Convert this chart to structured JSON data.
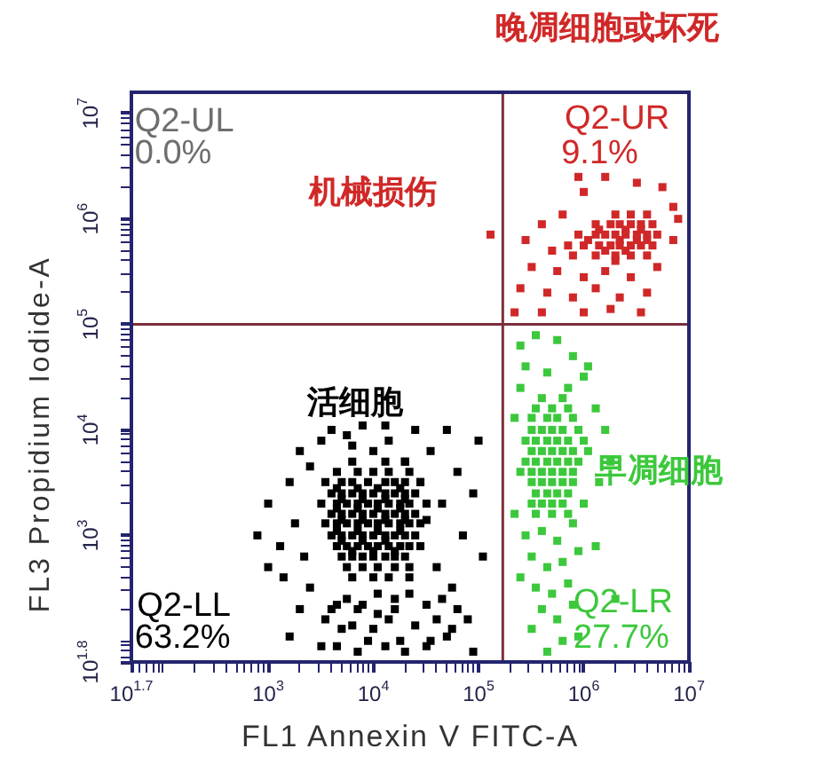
{
  "chart_data": {
    "type": "scatter",
    "xlabel": "FL1 Annexin V FITC-A",
    "ylabel": "FL3 Propidium Iodide-A",
    "log": "xy",
    "grid": false,
    "legend": false,
    "marker": "square",
    "xlim": [
      50.1,
      10000000
    ],
    "ylim": [
      63.1,
      15850000
    ],
    "xticks": [
      {
        "value": 50.1,
        "label": "10$^{1.7}$"
      },
      {
        "value": 60,
        "label": null
      },
      {
        "value": 70,
        "label": null
      },
      {
        "value": 80,
        "label": null
      },
      {
        "value": 90,
        "label": null
      },
      {
        "value": 100,
        "label": null
      },
      {
        "value": 200,
        "label": null
      },
      {
        "value": 300,
        "label": null
      },
      {
        "value": 400,
        "label": null
      },
      {
        "value": 500,
        "label": null
      },
      {
        "value": 600,
        "label": null
      },
      {
        "value": 700,
        "label": null
      },
      {
        "value": 800,
        "label": null
      },
      {
        "value": 900,
        "label": null
      },
      {
        "value": 1000,
        "label": "10$^{3}$"
      },
      {
        "value": 2000,
        "label": null
      },
      {
        "value": 3000,
        "label": null
      },
      {
        "value": 4000,
        "label": null
      },
      {
        "value": 5000,
        "label": null
      },
      {
        "value": 6000,
        "label": null
      },
      {
        "value": 7000,
        "label": null
      },
      {
        "value": 8000,
        "label": null
      },
      {
        "value": 9000,
        "label": null
      },
      {
        "value": 10000,
        "label": "10$^{4}$"
      },
      {
        "value": 20000,
        "label": null
      },
      {
        "value": 30000,
        "label": null
      },
      {
        "value": 40000,
        "label": null
      },
      {
        "value": 50000,
        "label": null
      },
      {
        "value": 60000,
        "label": null
      },
      {
        "value": 70000,
        "label": null
      },
      {
        "value": 80000,
        "label": null
      },
      {
        "value": 90000,
        "label": null
      },
      {
        "value": 100000,
        "label": "10$^{5}$"
      },
      {
        "value": 200000,
        "label": null
      },
      {
        "value": 300000,
        "label": null
      },
      {
        "value": 400000,
        "label": null
      },
      {
        "value": 500000,
        "label": null
      },
      {
        "value": 600000,
        "label": null
      },
      {
        "value": 700000,
        "label": null
      },
      {
        "value": 800000,
        "label": null
      },
      {
        "value": 900000,
        "label": null
      },
      {
        "value": 1000000,
        "label": "10$^{6}$"
      },
      {
        "value": 2000000,
        "label": null
      },
      {
        "value": 3000000,
        "label": null
      },
      {
        "value": 4000000,
        "label": null
      },
      {
        "value": 5000000,
        "label": null
      },
      {
        "value": 6000000,
        "label": null
      },
      {
        "value": 7000000,
        "label": null
      },
      {
        "value": 8000000,
        "label": null
      },
      {
        "value": 9000000,
        "label": null
      },
      {
        "value": 10000000,
        "label": "10$^{7}$"
      }
    ],
    "yticks": [
      {
        "value": 63.1,
        "label": "10$^{1.8}$"
      },
      {
        "value": 70,
        "label": null
      },
      {
        "value": 80,
        "label": null
      },
      {
        "value": 90,
        "label": null
      },
      {
        "value": 100,
        "label": null
      },
      {
        "value": 200,
        "label": null
      },
      {
        "value": 300,
        "label": null
      },
      {
        "value": 400,
        "label": null
      },
      {
        "value": 500,
        "label": null
      },
      {
        "value": 600,
        "label": null
      },
      {
        "value": 700,
        "label": null
      },
      {
        "value": 800,
        "label": null
      },
      {
        "value": 900,
        "label": null
      },
      {
        "value": 1000,
        "label": "10$^{3}$"
      },
      {
        "value": 2000,
        "label": null
      },
      {
        "value": 3000,
        "label": null
      },
      {
        "value": 4000,
        "label": null
      },
      {
        "value": 5000,
        "label": null
      },
      {
        "value": 6000,
        "label": null
      },
      {
        "value": 7000,
        "label": null
      },
      {
        "value": 8000,
        "label": null
      },
      {
        "value": 9000,
        "label": null
      },
      {
        "value": 10000,
        "label": "10$^{4}$"
      },
      {
        "value": 20000,
        "label": null
      },
      {
        "value": 30000,
        "label": null
      },
      {
        "value": 40000,
        "label": null
      },
      {
        "value": 50000,
        "label": null
      },
      {
        "value": 60000,
        "label": null
      },
      {
        "value": 70000,
        "label": null
      },
      {
        "value": 80000,
        "label": null
      },
      {
        "value": 90000,
        "label": null
      },
      {
        "value": 100000,
        "label": "10$^{5}$"
      },
      {
        "value": 200000,
        "label": null
      },
      {
        "value": 300000,
        "label": null
      },
      {
        "value": 400000,
        "label": null
      },
      {
        "value": 500000,
        "label": null
      },
      {
        "value": 600000,
        "label": null
      },
      {
        "value": 700000,
        "label": null
      },
      {
        "value": 800000,
        "label": null
      },
      {
        "value": 900000,
        "label": null
      },
      {
        "value": 1000000,
        "label": "10$^{6}$"
      },
      {
        "value": 2000000,
        "label": null
      },
      {
        "value": 3000000,
        "label": null
      },
      {
        "value": 4000000,
        "label": null
      },
      {
        "value": 5000000,
        "label": null
      },
      {
        "value": 6000000,
        "label": null
      },
      {
        "value": 7000000,
        "label": null
      },
      {
        "value": 8000000,
        "label": null
      },
      {
        "value": 9000000,
        "label": null
      },
      {
        "value": 10000000,
        "label": "10$^{7}$"
      }
    ],
    "ref_lines": [
      {
        "axis": "x",
        "value": 170000,
        "color": "#7d2e3a"
      },
      {
        "axis": "y",
        "value": 100000,
        "color": "#7d2e3a"
      }
    ],
    "series": [
      {
        "color": "#000000",
        "x": [
          6300,
          13000,
          20000,
          4500,
          7100,
          10000,
          14000,
          22000,
          3500,
          5000,
          6300,
          8900,
          13000,
          16000,
          20000,
          28000,
          4500,
          7100,
          11000,
          18000,
          4000,
          5000,
          6300,
          7900,
          10000,
          13000,
          16000,
          20000,
          25000,
          5000,
          7900,
          13000,
          20000,
          3200,
          4500,
          5600,
          7100,
          8900,
          11000,
          14000,
          18000,
          22000,
          32000,
          4500,
          7100,
          11000,
          18000,
          4000,
          5000,
          6300,
          7900,
          10000,
          13000,
          16000,
          20000,
          25000,
          5000,
          7900,
          13000,
          20000,
          3500,
          4500,
          5600,
          7100,
          8900,
          11000,
          14000,
          18000,
          22000,
          28000,
          4500,
          7100,
          11000,
          18000,
          4000,
          5000,
          6300,
          7900,
          10000,
          13000,
          16000,
          20000,
          25000,
          5000,
          7900,
          13000,
          4500,
          5600,
          7100,
          8900,
          11000,
          14000,
          18000,
          22000,
          6300,
          10000,
          16000,
          5000,
          6300,
          7900,
          10000,
          13000,
          16000,
          20000,
          5600,
          7900,
          11000,
          16000,
          22000,
          6300,
          10000,
          14000,
          1000,
          1300,
          1600,
          1400,
          1800,
          2000,
          2000,
          2200,
          2500,
          2500,
          3200,
          3500,
          4000,
          4500,
          6300,
          7100,
          7900,
          10000,
          11000,
          14000,
          16000,
          20000,
          22000,
          28000,
          28000,
          32000,
          35000,
          40000,
          45000,
          50000,
          56000,
          63000,
          71000,
          79000,
          89000,
          100000,
          110000,
          25000,
          5000,
          8900,
          18000,
          32000,
          50000,
          89000,
          3200,
          1600,
          13000,
          5600,
          1000,
          790,
          4000,
          5600,
          7900,
          11000,
          16000,
          22000,
          32000,
          45000,
          6300,
          10000,
          14000,
          25000,
          40000,
          4500,
          7100,
          13000,
          20000,
          35000,
          63000,
          56000
        ],
        "values": [
          5000,
          5000,
          5000,
          4000,
          4000,
          4000,
          4000,
          4000,
          3200,
          3200,
          3200,
          3200,
          3200,
          3200,
          3200,
          3200,
          2800,
          2800,
          2800,
          2800,
          2500,
          2500,
          2500,
          2500,
          2500,
          2500,
          2500,
          2500,
          2500,
          2200,
          2200,
          2200,
          2200,
          2000,
          2000,
          2000,
          2000,
          2000,
          2000,
          2000,
          2000,
          2000,
          2000,
          1800,
          1800,
          1800,
          1800,
          1600,
          1600,
          1600,
          1600,
          1600,
          1600,
          1600,
          1600,
          1600,
          1400,
          1400,
          1400,
          1400,
          1300,
          1300,
          1300,
          1300,
          1300,
          1300,
          1300,
          1300,
          1300,
          1300,
          1100,
          1100,
          1100,
          1100,
          1000,
          1000,
          1000,
          1000,
          1000,
          1000,
          1000,
          1000,
          1000,
          890,
          890,
          890,
          790,
          790,
          790,
          790,
          790,
          790,
          790,
          790,
          710,
          710,
          710,
          630,
          630,
          630,
          630,
          630,
          630,
          630,
          500,
          500,
          500,
          500,
          500,
          400,
          400,
          400,
          2000,
          790,
          3200,
          400,
          1300,
          6300,
          200,
          630,
          4500,
          320,
          7900,
          160,
          10000,
          220,
          7100,
          200,
          11000,
          6300,
          180,
          7900,
          250,
          5000,
          400,
          3200,
          790,
          1400,
          6300,
          500,
          2000,
          10000,
          320,
          4000,
          1000,
          160,
          2500,
          7900,
          630,
          10000,
          130,
          100,
          100,
          89,
          110,
          79,
          89,
          110,
          11000,
          8900,
          500,
          1000,
          200,
          250,
          220,
          280,
          200,
          280,
          220,
          250,
          140,
          130,
          160,
          140,
          160,
          89,
          79,
          89,
          79,
          100,
          200,
          130
        ]
      },
      {
        "color": "#3cc83c",
        "x": [
          400000,
          630000,
          350000,
          500000,
          710000,
          320000,
          450000,
          560000,
          790000,
          320000,
          400000,
          500000,
          630000,
          890000,
          280000,
          350000,
          450000,
          560000,
          710000,
          1000000,
          320000,
          400000,
          500000,
          630000,
          790000,
          280000,
          350000,
          450000,
          560000,
          710000,
          890000,
          320000,
          400000,
          500000,
          630000,
          790000,
          320000,
          400000,
          500000,
          630000,
          790000,
          350000,
          450000,
          560000,
          710000,
          320000,
          400000,
          500000,
          630000,
          350000,
          500000,
          710000,
          250000,
          350000,
          560000,
          790000,
          280000,
          450000,
          1000000,
          250000,
          710000,
          1300000,
          1100000,
          1400000,
          1600000,
          250000,
          220000,
          280000,
          400000,
          560000,
          790000,
          1000000,
          320000,
          450000,
          630000,
          890000,
          350000,
          500000,
          710000,
          1300000,
          400000,
          560000,
          790000,
          320000,
          630000,
          450000,
          890000,
          1800000,
          250000,
          2000000,
          220000,
          1100000
        ],
        "values": [
          20000,
          20000,
          16000,
          16000,
          16000,
          13000,
          13000,
          13000,
          13000,
          10000,
          10000,
          10000,
          10000,
          10000,
          7900,
          7900,
          7900,
          7900,
          7900,
          7900,
          6300,
          6300,
          6300,
          6300,
          6300,
          5000,
          5000,
          5000,
          5000,
          5000,
          5000,
          4000,
          4000,
          4000,
          4000,
          4000,
          3200,
          3200,
          3200,
          3200,
          3200,
          2500,
          2500,
          2500,
          2500,
          2000,
          2000,
          2000,
          2000,
          1600,
          1600,
          1600,
          63000,
          79000,
          71000,
          50000,
          40000,
          35000,
          32000,
          25000,
          25000,
          16000,
          6300,
          3200,
          10000,
          4000,
          1600,
          1000,
          1100,
          890,
          1300,
          2000,
          630,
          500,
          560,
          710,
          320,
          280,
          350,
          790,
          200,
          160,
          220,
          130,
          100,
          79,
          110,
          5000,
          400,
          250,
          13000,
          40000
        ]
      },
      {
        "name": "晚凋细胞或坏死",
        "color": "#d02828",
        "x": [
          2000000,
          2800000,
          4000000,
          1300000,
          1800000,
          2200000,
          2800000,
          3500000,
          4500000,
          890000,
          1300000,
          1600000,
          2000000,
          2500000,
          3200000,
          4000000,
          5000000,
          710000,
          1000000,
          1400000,
          1800000,
          2200000,
          2800000,
          3500000,
          4500000,
          790000,
          1300000,
          2000000,
          2800000,
          4000000,
          1400000,
          2500000,
          3500000,
          1100000,
          2200000,
          3200000,
          4000000,
          1600000,
          2500000,
          1600000,
          3200000,
          5600000,
          1000000,
          7100000,
          630000,
          400000,
          280000,
          500000,
          7100000,
          320000,
          560000,
          1000000,
          1600000,
          2800000,
          5000000,
          250000,
          450000,
          790000,
          1300000,
          2200000,
          4000000,
          220000,
          400000,
          1000000,
          1800000,
          3500000,
          890000,
          7900000,
          2000000,
          130000
        ],
        "values": [
          1100000,
          1100000,
          1100000,
          890000,
          890000,
          890000,
          890000,
          890000,
          890000,
          710000,
          710000,
          710000,
          710000,
          710000,
          710000,
          710000,
          710000,
          560000,
          560000,
          560000,
          560000,
          560000,
          560000,
          560000,
          560000,
          450000,
          450000,
          450000,
          450000,
          450000,
          790000,
          790000,
          790000,
          630000,
          630000,
          630000,
          630000,
          500000,
          500000,
          2500000,
          2200000,
          2000000,
          1800000,
          1300000,
          1100000,
          890000,
          630000,
          500000,
          630000,
          350000,
          320000,
          280000,
          320000,
          280000,
          350000,
          220000,
          200000,
          180000,
          220000,
          180000,
          200000,
          130000,
          130000,
          130000,
          140000,
          130000,
          2500000,
          1000000,
          400000,
          710000
        ]
      }
    ],
    "annotations": [
      "Q2-UL",
      "0.0%",
      "机械损伤",
      "Q2-UR",
      "9.1%",
      "活细胞",
      "早凋细胞",
      "Q2-LL",
      "63.2%",
      "Q2-LR",
      "27.7%"
    ]
  }
}
